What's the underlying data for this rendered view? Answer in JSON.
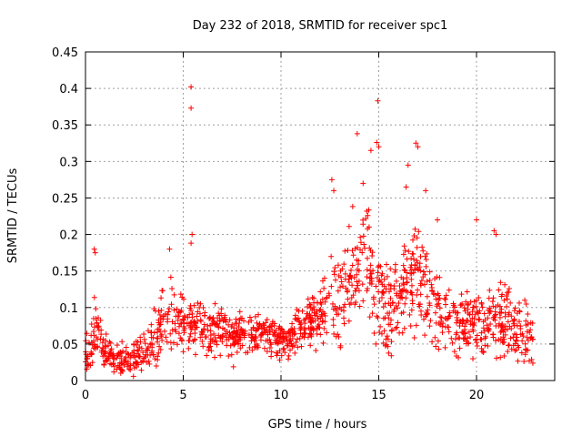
{
  "chart_data": {
    "type": "scatter",
    "title": "Day 232 of 2018, SRMTID for receiver spc1",
    "xlabel": "GPS time / hours",
    "ylabel": "SRMTID / TECUs",
    "xlim": [
      0,
      24
    ],
    "ylim": [
      0,
      0.45
    ],
    "xticks": [
      0,
      5,
      10,
      15,
      20
    ],
    "xtick_labels": [
      "0",
      "5",
      "10",
      "15",
      "20"
    ],
    "yticks": [
      0,
      0.05,
      0.1,
      0.15,
      0.2,
      0.25,
      0.3,
      0.35,
      0.4,
      0.45
    ],
    "ytick_labels": [
      "0",
      "0.05",
      "0.1",
      "0.15",
      "0.2",
      "0.25",
      "0.3",
      "0.35",
      "0.4",
      "0.45"
    ],
    "grid": true,
    "marker": "+",
    "color": "#ff0000",
    "series": [
      {
        "name": "spc1",
        "profile": [
          [
            0.0,
            0.03,
            0.03
          ],
          [
            0.3,
            0.05,
            0.04
          ],
          [
            0.5,
            0.07,
            0.06
          ],
          [
            1.0,
            0.035,
            0.03
          ],
          [
            2.0,
            0.03,
            0.025
          ],
          [
            3.0,
            0.035,
            0.03
          ],
          [
            3.8,
            0.07,
            0.05
          ],
          [
            4.3,
            0.09,
            0.05
          ],
          [
            5.0,
            0.08,
            0.045
          ],
          [
            6.0,
            0.07,
            0.04
          ],
          [
            7.0,
            0.065,
            0.04
          ],
          [
            8.0,
            0.06,
            0.035
          ],
          [
            9.0,
            0.065,
            0.03
          ],
          [
            10.0,
            0.055,
            0.03
          ],
          [
            11.0,
            0.065,
            0.035
          ],
          [
            12.0,
            0.09,
            0.05
          ],
          [
            12.8,
            0.11,
            0.08
          ],
          [
            13.5,
            0.14,
            0.08
          ],
          [
            14.0,
            0.16,
            0.09
          ],
          [
            14.5,
            0.17,
            0.1
          ],
          [
            15.0,
            0.12,
            0.09
          ],
          [
            15.5,
            0.1,
            0.07
          ],
          [
            16.3,
            0.13,
            0.09
          ],
          [
            17.0,
            0.14,
            0.09
          ],
          [
            17.8,
            0.1,
            0.07
          ],
          [
            18.5,
            0.08,
            0.05
          ],
          [
            19.5,
            0.08,
            0.05
          ],
          [
            20.5,
            0.08,
            0.05
          ],
          [
            21.0,
            0.09,
            0.06
          ],
          [
            22.0,
            0.07,
            0.05
          ],
          [
            22.8,
            0.06,
            0.04
          ]
        ],
        "x_range": [
          0.0,
          22.9
        ],
        "n_points": 1400,
        "outliers": [
          [
            5.4,
            0.402
          ],
          [
            5.4,
            0.373
          ],
          [
            5.45,
            0.2
          ],
          [
            5.4,
            0.188
          ],
          [
            14.95,
            0.383
          ],
          [
            13.9,
            0.338
          ],
          [
            14.9,
            0.326
          ],
          [
            15.0,
            0.32
          ],
          [
            16.9,
            0.325
          ],
          [
            17.0,
            0.32
          ],
          [
            16.5,
            0.295
          ],
          [
            14.6,
            0.315
          ],
          [
            12.6,
            0.275
          ],
          [
            12.7,
            0.26
          ],
          [
            0.45,
            0.18
          ],
          [
            0.5,
            0.175
          ],
          [
            4.3,
            0.18
          ],
          [
            20.0,
            0.22
          ],
          [
            20.9,
            0.205
          ],
          [
            21.0,
            0.2
          ],
          [
            18.0,
            0.22
          ],
          [
            16.4,
            0.265
          ],
          [
            14.2,
            0.27
          ],
          [
            17.4,
            0.26
          ]
        ]
      }
    ]
  }
}
